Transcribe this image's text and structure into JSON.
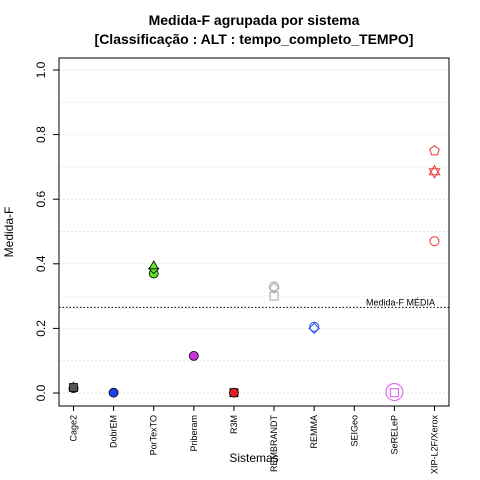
{
  "chart_data": {
    "type": "scatter",
    "title": "Medida-F agrupada por sistema",
    "subtitle": "[Classificação : ALT : tempo_completo_TEMPO]",
    "xlabel": "Sistemas",
    "ylabel": "Medida-F",
    "ylim": [
      0,
      1
    ],
    "yticks": [
      "0.0",
      "0.2",
      "0.4",
      "0.6",
      "0.8",
      "1.0"
    ],
    "grid": true,
    "categories": [
      "Cage2",
      "DobrEM",
      "PorTexTO",
      "Priberam",
      "R3M",
      "REMBRANDT",
      "REMMA",
      "SEIGeo",
      "SeRELeP",
      "XIP-L2F/Xerox"
    ],
    "points": [
      {
        "category": "Cage2",
        "value": 0.015,
        "shape": "circle",
        "color": "#555555",
        "filled": true
      },
      {
        "category": "Cage2",
        "value": 0.02,
        "shape": "triangle",
        "color": "#555555",
        "filled": true
      },
      {
        "category": "Cage2",
        "value": 0.017,
        "shape": "square",
        "color": "#555555",
        "filled": true
      },
      {
        "category": "DobrEM",
        "value": 0.001,
        "shape": "circle",
        "color": "#1e3ee6",
        "filled": true
      },
      {
        "category": "PorTexTO",
        "value": 0.37,
        "shape": "circle",
        "color": "#5ee62a",
        "filled": true
      },
      {
        "category": "PorTexTO",
        "value": 0.385,
        "shape": "diamond",
        "color": "#5ee62a",
        "filled": true
      },
      {
        "category": "PorTexTO",
        "value": 0.395,
        "shape": "triangle",
        "color": "#5ee62a",
        "filled": true
      },
      {
        "category": "Priberam",
        "value": 0.115,
        "shape": "circle",
        "color": "#cc33dd",
        "filled": true
      },
      {
        "category": "R3M",
        "value": 0.001,
        "shape": "square",
        "color": "#dd2222",
        "filled": true
      },
      {
        "category": "R3M",
        "value": 0.001,
        "shape": "circle",
        "color": "#dd2222",
        "filled": true
      },
      {
        "category": "REMBRANDT",
        "value": 0.33,
        "shape": "circle",
        "color": "#aaaaaa",
        "filled": false
      },
      {
        "category": "REMBRANDT",
        "value": 0.325,
        "shape": "diamond",
        "color": "#aaaaaa",
        "filled": false
      },
      {
        "category": "REMBRANDT",
        "value": 0.3,
        "shape": "square",
        "color": "#aaaaaa",
        "filled": false
      },
      {
        "category": "REMMA",
        "value": 0.205,
        "shape": "circle",
        "color": "#3355ee",
        "filled": false
      },
      {
        "category": "REMMA",
        "value": 0.2,
        "shape": "diamond",
        "color": "#3355ee",
        "filled": false
      },
      {
        "category": "SeRELeP",
        "value": 0.003,
        "shape": "circle",
        "color": "#dd66ee",
        "filled": false,
        "size": "large"
      },
      {
        "category": "SeRELeP",
        "value": 0.001,
        "shape": "square",
        "color": "#dd66ee",
        "filled": false
      },
      {
        "category": "XIP-L2F/Xerox",
        "value": 0.75,
        "shape": "pentagon",
        "color": "#ee4444",
        "filled": false
      },
      {
        "category": "XIP-L2F/Xerox",
        "value": 0.685,
        "shape": "star",
        "color": "#ee4444",
        "filled": false
      },
      {
        "category": "XIP-L2F/Xerox",
        "value": 0.47,
        "shape": "circle",
        "color": "#ee4444",
        "filled": false
      }
    ],
    "reference_line": {
      "label": "Medida-F MÉDIA",
      "value": 0.265
    }
  }
}
